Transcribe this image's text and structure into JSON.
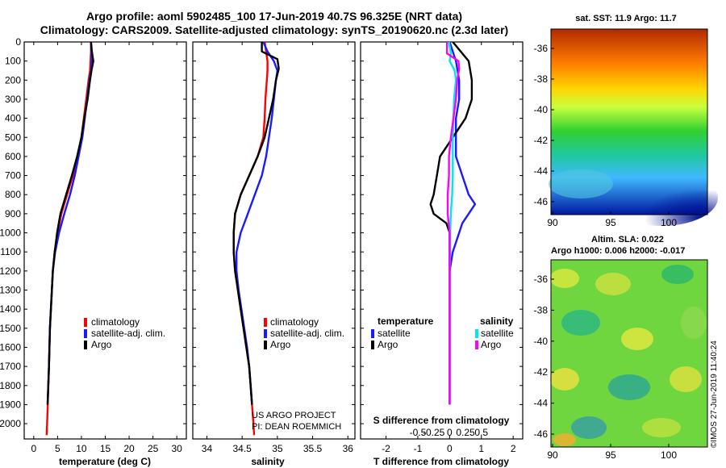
{
  "header": {
    "line1": "Argo profile: aoml 5902485_100 17-Jun-2019 40.7S 96.325E (NRT data)",
    "line2": "Climatology: CARS2009. Satellite-adjusted climatology: synTS_20190620.nc (2.3d later)"
  },
  "credits": {
    "line1": "US ARGO PROJECT",
    "line2": "PI: DEAN ROEMMICH"
  },
  "watermark": "©IMOS 27-Jun-2019 11:40:24",
  "colors": {
    "climatology": "#ff0000",
    "satellite": "#1a1aff",
    "argo": "#000000",
    "satellite_s": "#00e5ee",
    "argo_s": "#ff00ff"
  },
  "chart_data": [
    {
      "type": "line",
      "id": "temperature",
      "xlabel": "temperature (deg C)",
      "xlim": [
        -2,
        32
      ],
      "xticks": [
        "0",
        "5",
        "10",
        "15",
        "20",
        "25",
        "30"
      ],
      "ylim": [
        0,
        2080
      ],
      "yticks": [
        "0",
        "100",
        "200",
        "300",
        "400",
        "500",
        "600",
        "700",
        "800",
        "900",
        "1000",
        "1100",
        "1200",
        "1300",
        "1400",
        "1500",
        "1600",
        "1700",
        "1800",
        "1900",
        "2000"
      ],
      "legend": [
        "climatology",
        "satellite-adj. clim.",
        "Argo"
      ],
      "series": [
        {
          "name": "climatology",
          "depth": [
            0,
            50,
            100,
            150,
            200,
            300,
            400,
            500,
            600,
            700,
            800,
            900,
            1000,
            1100,
            1200,
            1300,
            1400,
            1500,
            1700,
            2000,
            2060
          ],
          "values": [
            12.0,
            12.0,
            11.9,
            11.8,
            11.5,
            11.0,
            10.5,
            10.0,
            9.2,
            8.2,
            7.0,
            5.8,
            5.0,
            4.4,
            4.0,
            3.8,
            3.6,
            3.4,
            3.2,
            2.8,
            2.7
          ]
        },
        {
          "name": "satellite-adj. clim.",
          "depth": [
            0,
            50,
            100,
            150,
            200,
            300,
            400,
            500,
            600,
            700,
            800,
            900,
            1000,
            1100,
            1200,
            1300,
            1400,
            1500,
            1700,
            1900
          ],
          "values": [
            12.0,
            12.1,
            12.2,
            12.0,
            11.7,
            11.2,
            10.7,
            10.2,
            9.4,
            8.6,
            7.6,
            6.4,
            5.3,
            4.5,
            4.0,
            3.8,
            3.6,
            3.4,
            3.2,
            2.9
          ]
        },
        {
          "name": "Argo",
          "depth": [
            0,
            50,
            100,
            150,
            200,
            300,
            400,
            500,
            600,
            700,
            800,
            900,
            1000,
            1100,
            1200,
            1300,
            1400,
            1500,
            1700,
            1900
          ],
          "values": [
            12.0,
            12.2,
            12.5,
            12.1,
            11.8,
            11.3,
            10.6,
            10.0,
            9.1,
            8.0,
            6.8,
            5.6,
            4.9,
            4.4,
            4.0,
            3.8,
            3.6,
            3.4,
            3.2,
            2.9
          ]
        }
      ]
    },
    {
      "type": "line",
      "id": "salinity",
      "xlabel": "salinity",
      "xlim": [
        33.8,
        36.1
      ],
      "xticks": [
        "34",
        "34.5",
        "35",
        "35.5",
        "36"
      ],
      "ylim": [
        0,
        2080
      ],
      "legend": [
        "climatology",
        "satellite-adj. clim.",
        "Argo"
      ],
      "series": [
        {
          "name": "climatology",
          "depth": [
            0,
            50,
            100,
            150,
            200,
            300,
            400,
            500,
            600,
            700,
            800,
            900,
            1000,
            1100,
            1200,
            1300,
            1400,
            1500,
            1600,
            1700,
            1800,
            1900,
            2000,
            2060
          ],
          "values": [
            34.82,
            34.84,
            34.86,
            34.86,
            34.85,
            34.83,
            34.82,
            34.8,
            34.72,
            34.6,
            34.48,
            34.4,
            34.38,
            34.38,
            34.4,
            34.44,
            34.48,
            34.52,
            34.56,
            34.6,
            34.62,
            34.64,
            34.66,
            34.67
          ]
        },
        {
          "name": "satellite-adj. clim.",
          "depth": [
            0,
            50,
            100,
            150,
            200,
            300,
            400,
            500,
            600,
            700,
            800,
            900,
            1000,
            1100,
            1200,
            1300,
            1400,
            1500,
            1600,
            1700,
            1800,
            1900
          ],
          "values": [
            34.8,
            34.86,
            34.95,
            35.0,
            34.98,
            34.95,
            34.92,
            34.88,
            34.84,
            34.78,
            34.68,
            34.58,
            34.48,
            34.42,
            34.42,
            34.45,
            34.49,
            34.53,
            34.57,
            34.6,
            34.62,
            34.64
          ]
        },
        {
          "name": "Argo",
          "depth": [
            0,
            50,
            90,
            140,
            200,
            300,
            400,
            500,
            600,
            700,
            800,
            900,
            1000,
            1100,
            1200,
            1300,
            1400,
            1500,
            1600,
            1700,
            1800,
            1900
          ],
          "values": [
            34.78,
            34.78,
            35.0,
            35.02,
            34.98,
            34.94,
            34.88,
            34.82,
            34.72,
            34.6,
            34.48,
            34.4,
            34.38,
            34.38,
            34.4,
            34.44,
            34.48,
            34.52,
            34.56,
            34.6,
            34.62,
            34.64
          ]
        }
      ]
    },
    {
      "type": "line",
      "id": "difference",
      "xlabel": "T difference from climatology",
      "xlabel_top": "S difference from climatology",
      "xlim": [
        -2.8,
        2.3
      ],
      "xticks": [
        "-2",
        "-1",
        "0",
        "1",
        "2"
      ],
      "xticks_top": [
        "-0.5",
        "-0.25",
        "0",
        "0.25",
        "0.5"
      ],
      "ylim": [
        0,
        2080
      ],
      "legend_title_t": "temperature",
      "legend_title_s": "salinity",
      "legend": [
        "satellite",
        "Argo",
        "satellite",
        "Argo"
      ],
      "series": [
        {
          "name": "T satellite",
          "depth": [
            0,
            100,
            200,
            300,
            400,
            500,
            600,
            700,
            800,
            850,
            900,
            950,
            1000,
            1100,
            1200,
            1300,
            1400,
            1500,
            1700,
            1900
          ],
          "values": [
            0.0,
            0.2,
            0.3,
            0.3,
            0.2,
            0.2,
            0.2,
            0.4,
            0.6,
            0.8,
            0.6,
            0.4,
            0.3,
            0.1,
            0.0,
            0.0,
            0.0,
            0.0,
            0.0,
            0.0
          ]
        },
        {
          "name": "T Argo",
          "depth": [
            0,
            100,
            200,
            300,
            400,
            500,
            600,
            700,
            800,
            850,
            900,
            950,
            1000,
            1100,
            1200,
            1300,
            1400,
            1500,
            1700,
            1900
          ],
          "values": [
            0.1,
            0.6,
            0.7,
            0.7,
            0.5,
            0.1,
            -0.3,
            -0.4,
            -0.5,
            -0.6,
            -0.5,
            -0.1,
            0.0,
            0.0,
            0.0,
            0.0,
            0.0,
            0.0,
            0.0,
            0.0
          ]
        },
        {
          "name": "S satellite",
          "depth": [
            0,
            60,
            100,
            150,
            200,
            300,
            400,
            500,
            600,
            700,
            800,
            900,
            1000,
            1100,
            1200,
            1300,
            1400,
            1500,
            1700,
            1900
          ],
          "values": [
            -0.01,
            0.02,
            0.0,
            0.08,
            0.1,
            0.07,
            0.06,
            0.05,
            0.05,
            0.05,
            0.04,
            0.02,
            0.01,
            0.01,
            0.0,
            0.0,
            0.0,
            0.0,
            0.0,
            0.0
          ]
        },
        {
          "name": "S Argo",
          "depth": [
            0,
            60,
            100,
            140,
            200,
            300,
            400,
            500,
            600,
            700,
            800,
            900,
            1000,
            1100,
            1200,
            1300,
            1400,
            1500,
            1700,
            1900
          ],
          "values": [
            -0.04,
            -0.04,
            0.14,
            0.15,
            0.12,
            0.1,
            0.06,
            0.02,
            -0.01,
            -0.01,
            -0.03,
            -0.03,
            0.0,
            0.0,
            0.0,
            0.0,
            0.0,
            0.0,
            0.0,
            0.0
          ]
        }
      ]
    },
    {
      "type": "heatmap",
      "id": "sst-map",
      "title": "sat. SST: 11.9 Argo: 11.7",
      "xticks": [
        "90",
        "95",
        "100"
      ],
      "yticks": [
        "-36",
        "-38",
        "-40",
        "-42",
        "-44",
        "-46"
      ]
    },
    {
      "type": "heatmap",
      "id": "sla-map",
      "title_line1": "Altim. SLA: 0.022",
      "title_line2": "Argo h1000: 0.006 h2000: -0.017",
      "xticks": [
        "90",
        "95",
        "100"
      ],
      "yticks": [
        "-36",
        "-38",
        "-40",
        "-42",
        "-44",
        "-46"
      ]
    }
  ]
}
